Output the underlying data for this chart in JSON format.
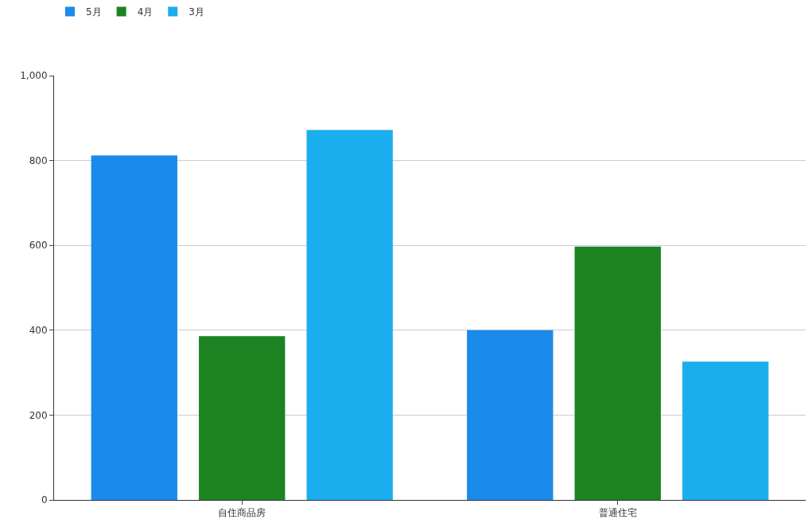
{
  "chart_data": {
    "type": "bar",
    "categories": [
      "自住商品房",
      "普通住宅"
    ],
    "series": [
      {
        "name": "5月",
        "color": "#1a8bea",
        "values": [
          812,
          400
        ]
      },
      {
        "name": "4月",
        "color": "#1b8321",
        "values": [
          386,
          597
        ]
      },
      {
        "name": "3月",
        "color": "#1aaeee",
        "values": [
          872,
          326
        ]
      }
    ],
    "ylim": [
      0,
      1000
    ],
    "yticks": [
      0,
      200,
      400,
      600,
      800,
      {
        "value": 1000,
        "label": "1,000"
      }
    ],
    "grid": "y",
    "legend": "top left"
  }
}
